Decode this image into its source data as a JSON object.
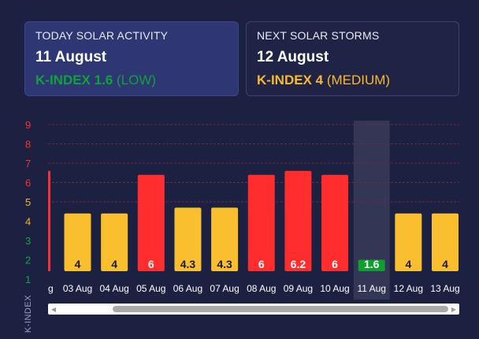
{
  "today": {
    "title": "TODAY SOLAR ACTIVITY",
    "date": "11 August",
    "kindex_value": "K-INDEX 1.6",
    "kindex_level": "(LOW)",
    "color": "#10a13a"
  },
  "next": {
    "title": "NEXT SOLAR STORMS",
    "date": "12 August",
    "kindex_value": "K-INDEX 4",
    "kindex_level": "(MEDIUM)",
    "color": "#f9b82e"
  },
  "chart_data": {
    "type": "bar",
    "ylabel": "K-INDEX",
    "ylim": [
      1,
      9
    ],
    "yticks": [
      "1",
      "2",
      "3",
      "4",
      "5",
      "6",
      "7",
      "8",
      "9"
    ],
    "ytick_colors": [
      "#17a34a",
      "#17a34a",
      "#17a34a",
      "#f9b82e",
      "#f9b82e",
      "#ff2d2d",
      "#ff2d2d",
      "#ff2d2d",
      "#ff2d2d"
    ],
    "partial_first_category": "g",
    "categories": [
      "03 Aug",
      "04 Aug",
      "05 Aug",
      "06 Aug",
      "07 Aug",
      "08 Aug",
      "09 Aug",
      "10 Aug",
      "11 Aug",
      "12 Aug",
      "13 Aug"
    ],
    "values": [
      4,
      4,
      6,
      4.3,
      4.3,
      6,
      6.2,
      6,
      1.6,
      4,
      4
    ],
    "labels": [
      "4",
      "4",
      "6",
      "4.3",
      "4.3",
      "6",
      "6.2",
      "6",
      "1.6",
      "4",
      "4"
    ],
    "colors": [
      "#f9bf2e",
      "#f9bf2e",
      "#ff2d2d",
      "#f9bf2e",
      "#f9bf2e",
      "#ff2d2d",
      "#ff2d2d",
      "#ff2d2d",
      "#0f9f2f",
      "#f9bf2e",
      "#f9bf2e"
    ],
    "highlight_category": "11 Aug",
    "legend": "none",
    "grid": "dashed horizontal lines for storm levels 5–9"
  }
}
